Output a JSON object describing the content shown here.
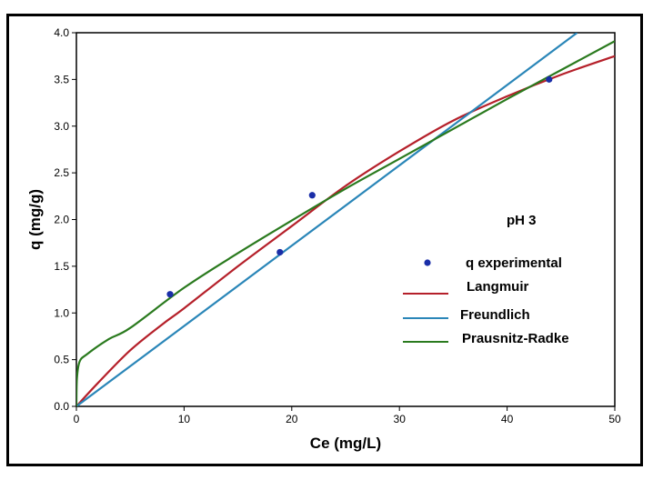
{
  "chart_data": {
    "type": "line",
    "title": "",
    "annotation": "pH 3",
    "xlabel": "Ce (mg/L)",
    "ylabel": "q (mg/g)",
    "xlim": [
      0,
      50
    ],
    "ylim": [
      0,
      4.0
    ],
    "x_ticks": [
      0,
      10,
      20,
      30,
      40,
      50
    ],
    "x_tick_labels": [
      "0",
      "10",
      "20",
      "30",
      "40",
      "50"
    ],
    "y_ticks": [
      0,
      0.5,
      1.0,
      1.5,
      2.0,
      2.5,
      3.0,
      3.5,
      4.0
    ],
    "y_tick_labels": [
      "0.0",
      "0.5",
      "1.0",
      "1.5",
      "2.0",
      "2.5",
      "3.0",
      "3.5",
      "4.0"
    ],
    "grid": false,
    "legend_position": "right",
    "scatter": {
      "name": "q experimental",
      "color": "#1a2ea8",
      "x": [
        8.7,
        18.9,
        21.9,
        43.9
      ],
      "y": [
        1.2,
        1.65,
        2.26,
        3.5
      ]
    },
    "series": [
      {
        "name": "Langmuir",
        "color": "#b5202a",
        "x": [
          0,
          2,
          5,
          8,
          10,
          15,
          20,
          25,
          30,
          35,
          40,
          45,
          50
        ],
        "y": [
          0,
          0.25,
          0.6,
          0.88,
          1.05,
          1.5,
          1.93,
          2.36,
          2.73,
          3.06,
          3.32,
          3.55,
          3.75
        ]
      },
      {
        "name": "Freundlich",
        "color": "#2a86b8",
        "x": [
          0,
          10,
          20,
          30,
          40,
          46.5
        ],
        "y": [
          0,
          0.86,
          1.72,
          2.58,
          3.44,
          4.0
        ]
      },
      {
        "name": "Prausnitz-Radke",
        "color": "#2a7a1e",
        "x": [
          0,
          0.05,
          0.3,
          1,
          3,
          5,
          10,
          15,
          20,
          25,
          30,
          35,
          40,
          45,
          50
        ],
        "y": [
          0,
          0.3,
          0.48,
          0.56,
          0.72,
          0.84,
          1.27,
          1.64,
          1.99,
          2.33,
          2.65,
          2.97,
          3.29,
          3.6,
          3.91
        ]
      }
    ]
  }
}
